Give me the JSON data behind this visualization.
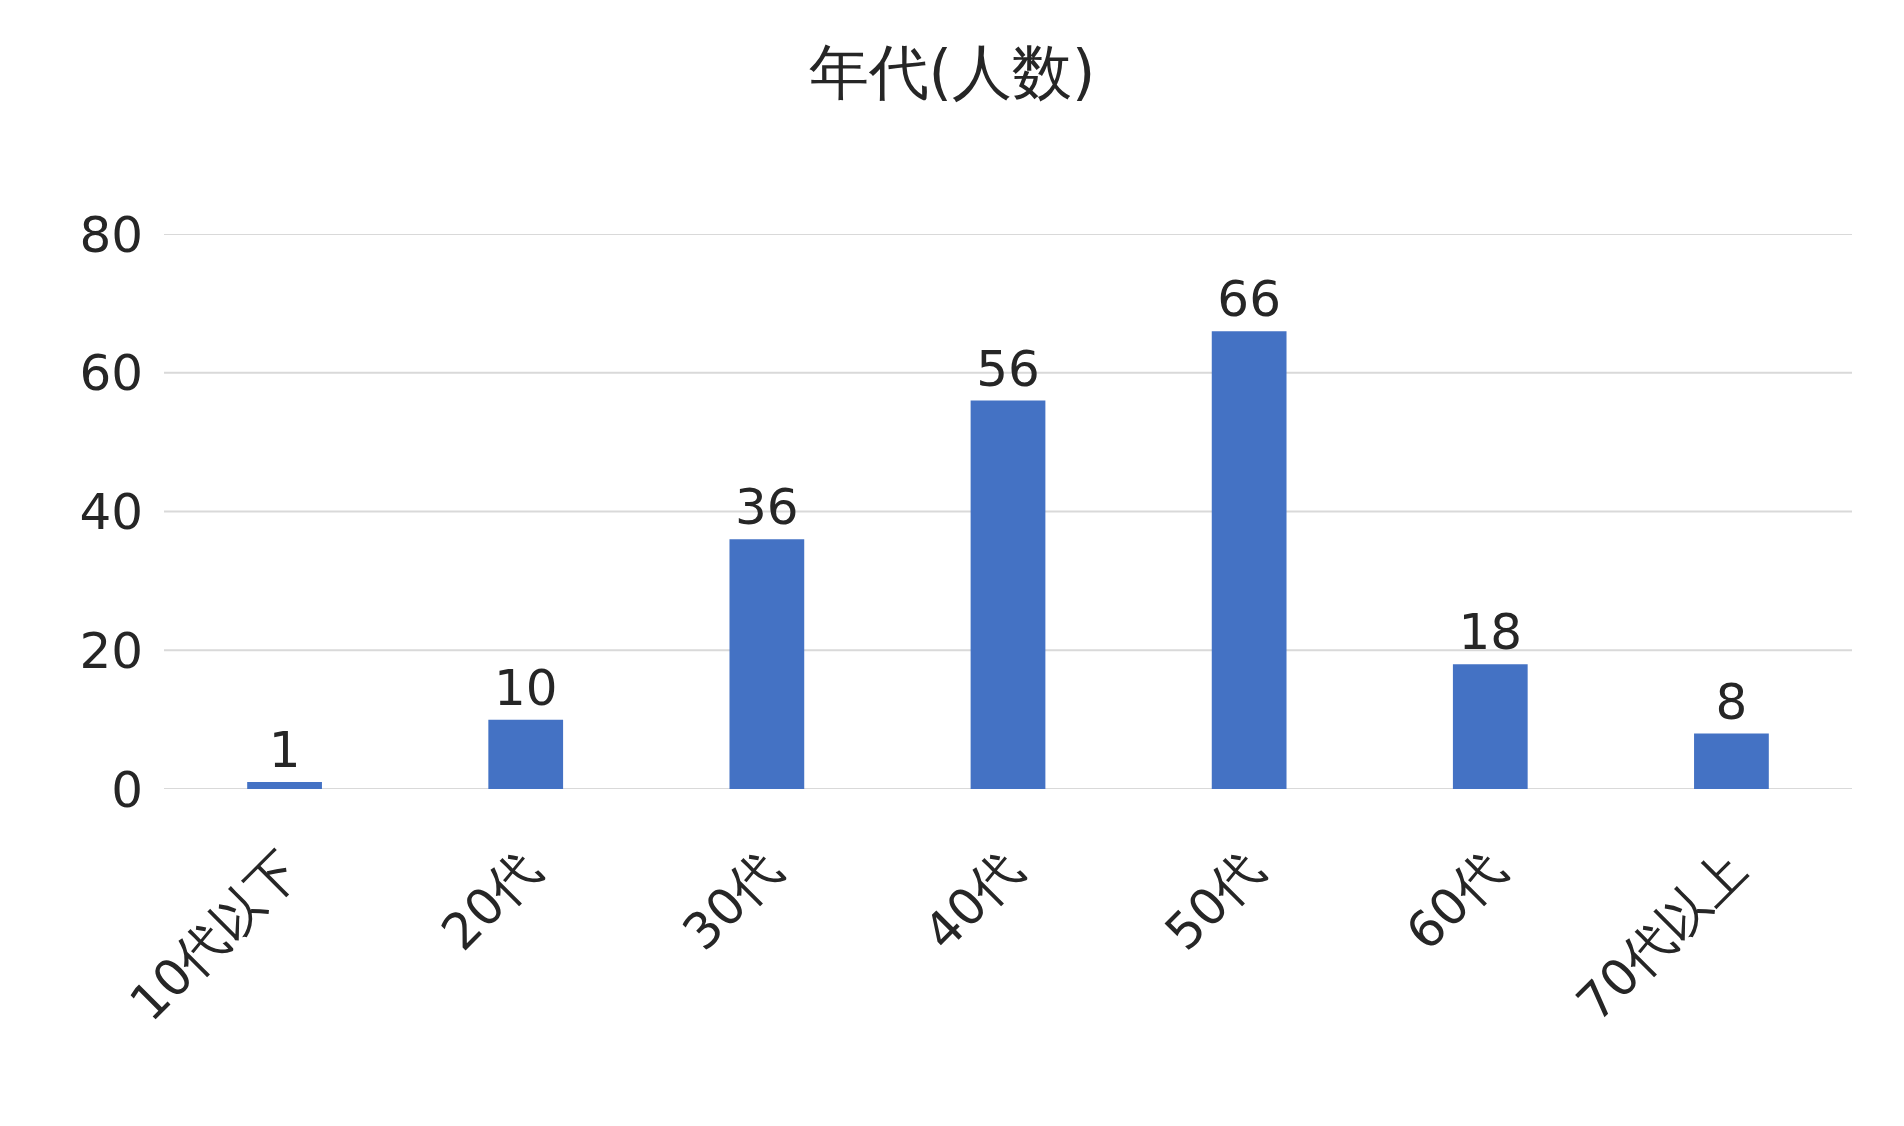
{
  "chart_data": {
    "type": "bar",
    "title": "年代(人数)",
    "categories": [
      "10代以下",
      "20代",
      "30代",
      "40代",
      "50代",
      "60代",
      "70代以上"
    ],
    "values": [
      1,
      10,
      36,
      56,
      66,
      18,
      8
    ],
    "color": "#4472c4",
    "ylim": [
      0,
      80
    ],
    "yticks": [
      0,
      20,
      40,
      60,
      80
    ],
    "grid": "y",
    "data_labels": true
  }
}
